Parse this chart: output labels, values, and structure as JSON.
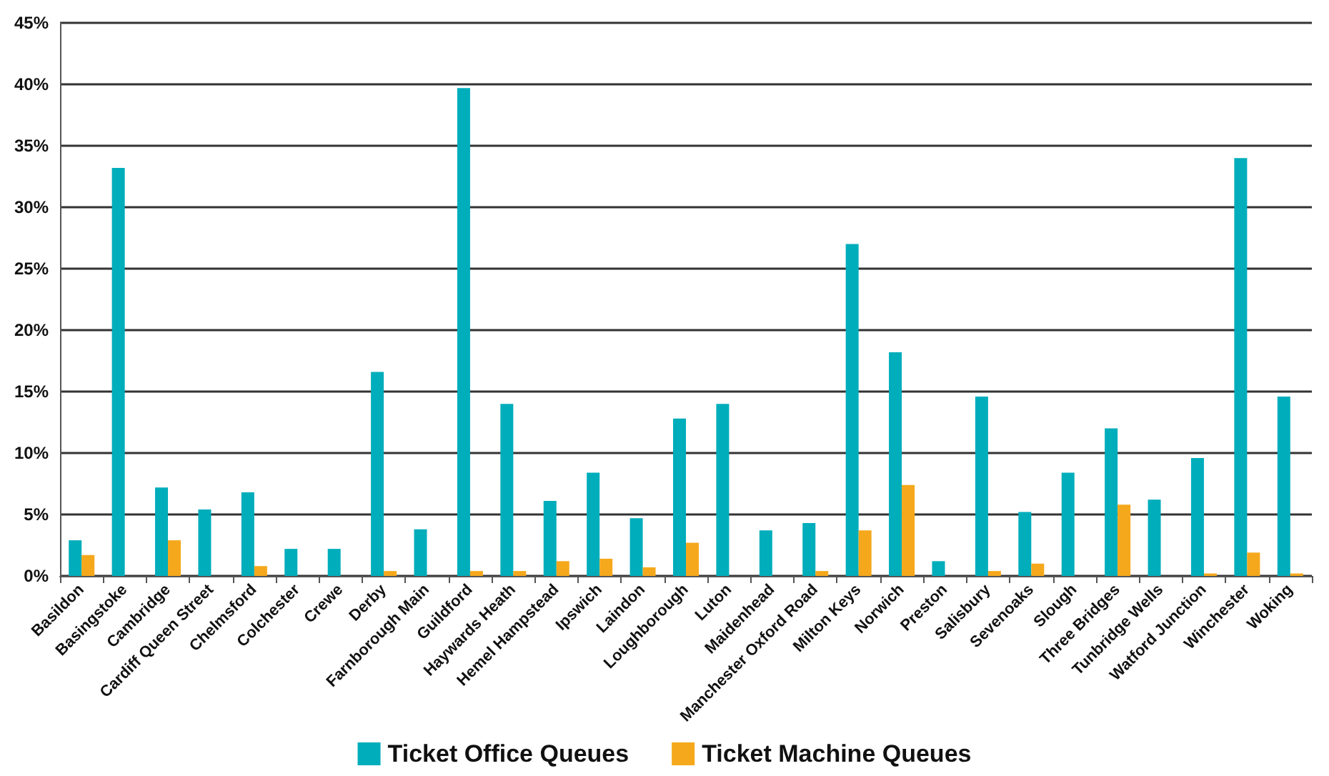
{
  "chart_data": {
    "type": "bar",
    "categories": [
      "Basildon",
      "Basingstoke",
      "Cambridge",
      "Cardiff Queen Street",
      "Chelmsford",
      "Colchester",
      "Crewe",
      "Derby",
      "Farnborough Main",
      "Guildford",
      "Haywards Heath",
      "Hemel Hampstead",
      "Ipswich",
      "Laindon",
      "Loughborough",
      "Luton",
      "Maidenhead",
      "Manchester Oxford Road",
      "Milton Keys",
      "Norwich",
      "Preston",
      "Salisbury",
      "Sevenoaks",
      "Slough",
      "Three Bridges",
      "Tunbridge Wells",
      "Watford Junction",
      "Winchester",
      "Woking"
    ],
    "series": [
      {
        "name": "Ticket Office Queues",
        "color": "#00adbb",
        "values": [
          2.9,
          33.2,
          7.2,
          5.4,
          6.8,
          2.2,
          2.2,
          16.6,
          3.8,
          39.7,
          14.0,
          6.1,
          8.4,
          4.7,
          12.8,
          14.0,
          3.7,
          4.3,
          27.0,
          18.2,
          1.2,
          14.6,
          5.2,
          8.4,
          12.0,
          6.2,
          9.6,
          34.0,
          14.6
        ]
      },
      {
        "name": "Ticket Machine Queues",
        "color": "#f5a81c",
        "values": [
          1.7,
          0,
          2.9,
          0,
          0.8,
          0,
          0,
          0.4,
          0,
          0.4,
          0.4,
          1.2,
          1.4,
          0.7,
          2.7,
          0,
          0,
          0.4,
          3.7,
          7.4,
          0,
          0.4,
          1.0,
          0,
          5.8,
          0,
          0.2,
          1.9,
          0.2
        ]
      }
    ],
    "ylim": [
      0,
      45
    ],
    "yticks": [
      {
        "value": 0,
        "label": "0%"
      },
      {
        "value": 5,
        "label": "5%"
      },
      {
        "value": 10,
        "label": "10%"
      },
      {
        "value": 15,
        "label": "15%"
      },
      {
        "value": 20,
        "label": "20%"
      },
      {
        "value": 25,
        "label": "25%"
      },
      {
        "value": 30,
        "label": "30%"
      },
      {
        "value": 35,
        "label": "35%"
      },
      {
        "value": 40,
        "label": "40%"
      },
      {
        "value": 45,
        "label": "45%"
      }
    ],
    "grid": "y",
    "legend": "bottom"
  }
}
